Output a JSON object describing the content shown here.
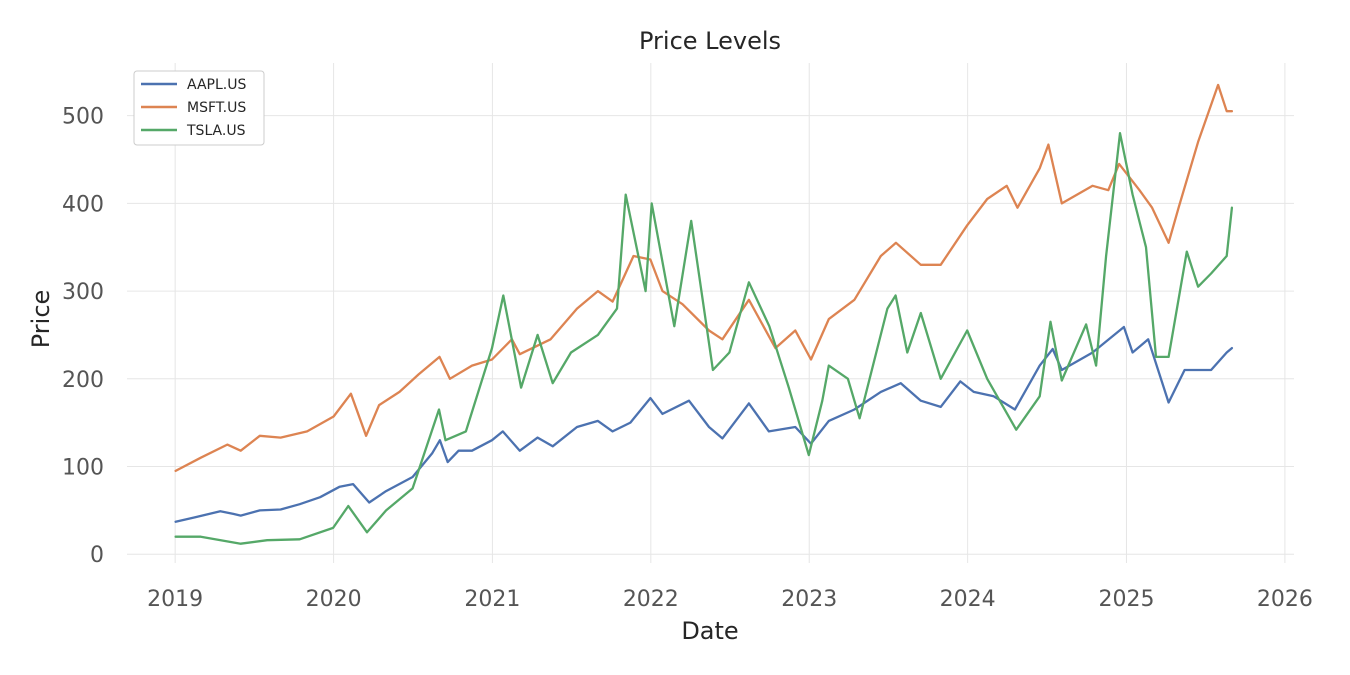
{
  "chart_data": {
    "type": "line",
    "title": "Price Levels",
    "xlabel": "Date",
    "ylabel": "Price",
    "xlim": [
      "2018-09-12",
      "2026-01-22"
    ],
    "ylim": [
      -10,
      560
    ],
    "x_ticks": [
      "2019",
      "2020",
      "2021",
      "2022",
      "2023",
      "2024",
      "2025",
      "2026"
    ],
    "y_ticks": [
      "0",
      "100",
      "200",
      "300",
      "400",
      "500"
    ],
    "grid": true,
    "legend_position": "top-left",
    "series": [
      {
        "name": "AAPL.US",
        "color": "#4c72b0",
        "points": [
          [
            "2019-01-02",
            37
          ],
          [
            "2019-02-15",
            42
          ],
          [
            "2019-04-15",
            49
          ],
          [
            "2019-05-15",
            46
          ],
          [
            "2019-06-01",
            44
          ],
          [
            "2019-07-15",
            50
          ],
          [
            "2019-09-01",
            51
          ],
          [
            "2019-10-15",
            57
          ],
          [
            "2019-12-01",
            65
          ],
          [
            "2020-01-15",
            77
          ],
          [
            "2020-02-15",
            80
          ],
          [
            "2020-03-23",
            59
          ],
          [
            "2020-05-01",
            72
          ],
          [
            "2020-07-01",
            88
          ],
          [
            "2020-08-15",
            115
          ],
          [
            "2020-09-02",
            130
          ],
          [
            "2020-09-20",
            105
          ],
          [
            "2020-10-15",
            118
          ],
          [
            "2020-11-15",
            118
          ],
          [
            "2020-12-31",
            130
          ],
          [
            "2021-01-25",
            140
          ],
          [
            "2021-03-05",
            118
          ],
          [
            "2021-04-15",
            133
          ],
          [
            "2021-05-20",
            123
          ],
          [
            "2021-07-15",
            145
          ],
          [
            "2021-09-01",
            152
          ],
          [
            "2021-10-05",
            140
          ],
          [
            "2021-11-15",
            150
          ],
          [
            "2021-12-31",
            178
          ],
          [
            "2022-01-28",
            160
          ],
          [
            "2022-03-30",
            175
          ],
          [
            "2022-05-15",
            145
          ],
          [
            "2022-06-15",
            132
          ],
          [
            "2022-08-15",
            172
          ],
          [
            "2022-09-30",
            140
          ],
          [
            "2022-11-30",
            145
          ],
          [
            "2023-01-05",
            126
          ],
          [
            "2023-02-15",
            152
          ],
          [
            "2023-04-15",
            165
          ],
          [
            "2023-06-15",
            185
          ],
          [
            "2023-07-31",
            195
          ],
          [
            "2023-09-15",
            175
          ],
          [
            "2023-10-31",
            168
          ],
          [
            "2023-12-15",
            197
          ],
          [
            "2024-01-15",
            185
          ],
          [
            "2024-03-01",
            180
          ],
          [
            "2024-04-19",
            165
          ],
          [
            "2024-06-15",
            215
          ],
          [
            "2024-07-15",
            234
          ],
          [
            "2024-08-05",
            210
          ],
          [
            "2024-10-15",
            230
          ],
          [
            "2024-12-26",
            259
          ],
          [
            "2025-01-15",
            230
          ],
          [
            "2025-02-20",
            245
          ],
          [
            "2025-04-08",
            173
          ],
          [
            "2025-05-15",
            210
          ],
          [
            "2025-07-15",
            210
          ],
          [
            "2025-08-20",
            230
          ],
          [
            "2025-09-01",
            235
          ]
        ]
      },
      {
        "name": "MSFT.US",
        "color": "#dd8452",
        "points": [
          [
            "2019-01-02",
            95
          ],
          [
            "2019-03-01",
            110
          ],
          [
            "2019-05-01",
            125
          ],
          [
            "2019-06-01",
            118
          ],
          [
            "2019-07-15",
            135
          ],
          [
            "2019-09-01",
            133
          ],
          [
            "2019-11-01",
            140
          ],
          [
            "2020-01-01",
            157
          ],
          [
            "2020-02-10",
            183
          ],
          [
            "2020-03-16",
            135
          ],
          [
            "2020-04-15",
            170
          ],
          [
            "2020-06-01",
            185
          ],
          [
            "2020-07-15",
            205
          ],
          [
            "2020-09-01",
            225
          ],
          [
            "2020-09-25",
            200
          ],
          [
            "2020-11-15",
            215
          ],
          [
            "2020-12-31",
            222
          ],
          [
            "2021-02-15",
            245
          ],
          [
            "2021-03-05",
            228
          ],
          [
            "2021-05-15",
            245
          ],
          [
            "2021-07-15",
            280
          ],
          [
            "2021-09-01",
            300
          ],
          [
            "2021-10-05",
            288
          ],
          [
            "2021-11-22",
            340
          ],
          [
            "2021-12-31",
            336
          ],
          [
            "2022-01-28",
            300
          ],
          [
            "2022-03-15",
            285
          ],
          [
            "2022-05-15",
            255
          ],
          [
            "2022-06-15",
            245
          ],
          [
            "2022-08-15",
            290
          ],
          [
            "2022-10-15",
            235
          ],
          [
            "2022-11-30",
            255
          ],
          [
            "2023-01-05",
            222
          ],
          [
            "2023-02-15",
            268
          ],
          [
            "2023-04-15",
            290
          ],
          [
            "2023-06-15",
            340
          ],
          [
            "2023-07-20",
            355
          ],
          [
            "2023-09-15",
            330
          ],
          [
            "2023-10-31",
            330
          ],
          [
            "2023-12-31",
            375
          ],
          [
            "2024-02-15",
            405
          ],
          [
            "2024-03-31",
            420
          ],
          [
            "2024-04-25",
            395
          ],
          [
            "2024-06-15",
            440
          ],
          [
            "2024-07-05",
            467
          ],
          [
            "2024-08-05",
            400
          ],
          [
            "2024-10-15",
            420
          ],
          [
            "2024-11-20",
            415
          ],
          [
            "2024-12-15",
            445
          ],
          [
            "2025-01-31",
            415
          ],
          [
            "2025-03-01",
            395
          ],
          [
            "2025-04-08",
            355
          ],
          [
            "2025-05-01",
            395
          ],
          [
            "2025-06-15",
            470
          ],
          [
            "2025-07-31",
            535
          ],
          [
            "2025-08-20",
            505
          ],
          [
            "2025-09-01",
            505
          ]
        ]
      },
      {
        "name": "TSLA.US",
        "color": "#55a868",
        "points": [
          [
            "2019-01-02",
            20
          ],
          [
            "2019-03-01",
            20
          ],
          [
            "2019-06-01",
            12
          ],
          [
            "2019-08-01",
            16
          ],
          [
            "2019-10-15",
            17
          ],
          [
            "2019-12-31",
            30
          ],
          [
            "2020-02-04",
            55
          ],
          [
            "2020-03-18",
            25
          ],
          [
            "2020-05-01",
            50
          ],
          [
            "2020-07-01",
            75
          ],
          [
            "2020-08-31",
            165
          ],
          [
            "2020-09-15",
            130
          ],
          [
            "2020-11-01",
            140
          ],
          [
            "2020-12-31",
            235
          ],
          [
            "2021-01-26",
            295
          ],
          [
            "2021-03-08",
            190
          ],
          [
            "2021-04-15",
            250
          ],
          [
            "2021-05-20",
            195
          ],
          [
            "2021-07-01",
            230
          ],
          [
            "2021-09-01",
            250
          ],
          [
            "2021-10-15",
            280
          ],
          [
            "2021-11-04",
            410
          ],
          [
            "2021-12-20",
            300
          ],
          [
            "2022-01-03",
            400
          ],
          [
            "2022-02-24",
            260
          ],
          [
            "2022-04-04",
            380
          ],
          [
            "2022-05-24",
            210
          ],
          [
            "2022-07-01",
            230
          ],
          [
            "2022-08-15",
            310
          ],
          [
            "2022-10-01",
            260
          ],
          [
            "2022-11-15",
            190
          ],
          [
            "2022-12-31",
            113
          ],
          [
            "2023-01-31",
            175
          ],
          [
            "2023-02-15",
            215
          ],
          [
            "2023-03-31",
            200
          ],
          [
            "2023-04-27",
            155
          ],
          [
            "2023-06-30",
            280
          ],
          [
            "2023-07-19",
            295
          ],
          [
            "2023-08-15",
            230
          ],
          [
            "2023-09-15",
            275
          ],
          [
            "2023-10-31",
            200
          ],
          [
            "2023-12-31",
            255
          ],
          [
            "2024-02-15",
            200
          ],
          [
            "2024-04-22",
            142
          ],
          [
            "2024-06-15",
            180
          ],
          [
            "2024-07-10",
            265
          ],
          [
            "2024-08-05",
            198
          ],
          [
            "2024-09-30",
            262
          ],
          [
            "2024-10-23",
            215
          ],
          [
            "2024-11-15",
            340
          ],
          [
            "2024-12-17",
            480
          ],
          [
            "2025-01-15",
            410
          ],
          [
            "2025-02-15",
            350
          ],
          [
            "2025-03-10",
            225
          ],
          [
            "2025-04-08",
            225
          ],
          [
            "2025-05-20",
            345
          ],
          [
            "2025-06-15",
            305
          ],
          [
            "2025-07-15",
            320
          ],
          [
            "2025-08-20",
            340
          ],
          [
            "2025-09-01",
            395
          ]
        ]
      }
    ]
  }
}
